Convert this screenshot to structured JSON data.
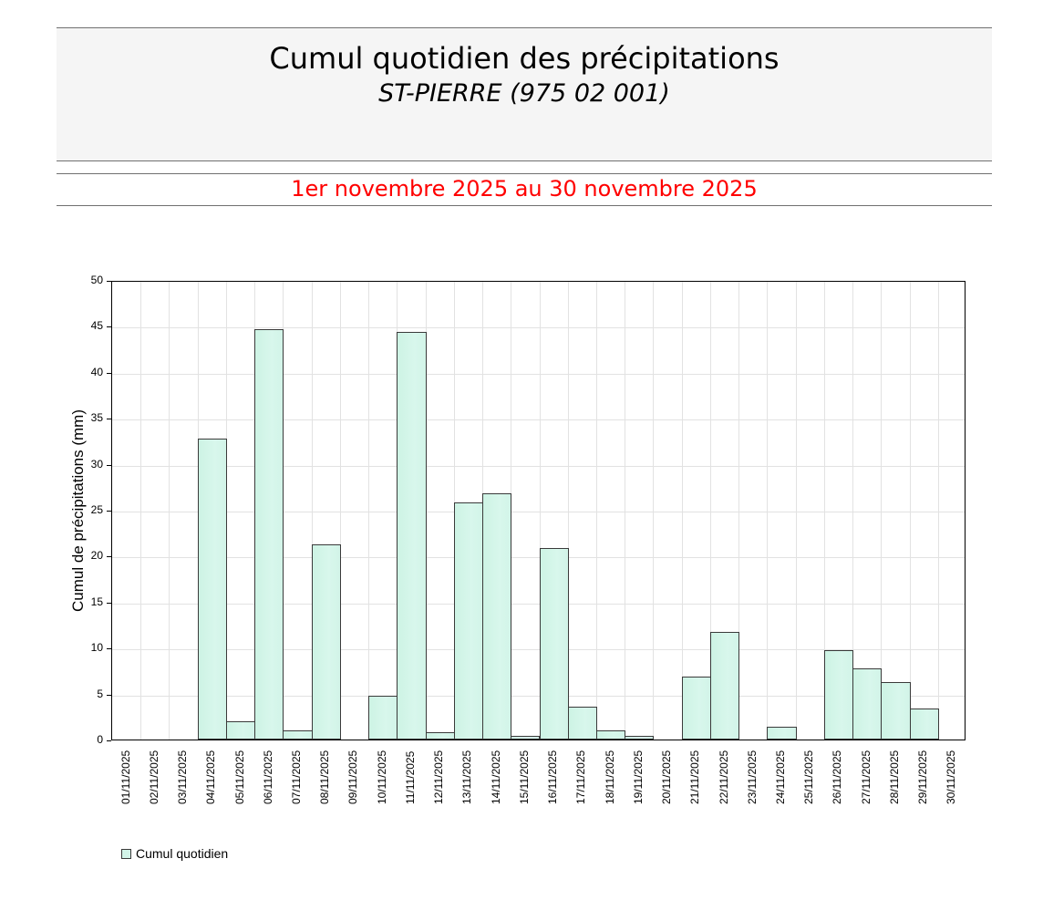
{
  "header": {
    "title": "Cumul quotidien des précipitations",
    "station": "ST-PIERRE (975 02 001)",
    "period": "1er novembre 2025 au 30 novembre 2025"
  },
  "colors": {
    "period_text": "#ff0000",
    "bar_fill": "#d2f4e8",
    "bar_border": "#3a3a3a",
    "grid": "#e2e2e2"
  },
  "legend": {
    "label": "Cumul quotidien"
  },
  "chart_data": {
    "type": "bar",
    "title": "Cumul quotidien des précipitations",
    "subtitle": "ST-PIERRE (975 02 001)",
    "xlabel": "",
    "ylabel": "Cumul de précipitations (mm)",
    "ylim": [
      0,
      50
    ],
    "yticks": [
      0,
      5,
      10,
      15,
      20,
      25,
      30,
      35,
      40,
      45,
      50
    ],
    "grid": true,
    "legend_position": "bottom-left",
    "categories": [
      "01/11/2025",
      "02/11/2025",
      "03/11/2025",
      "04/11/2025",
      "05/11/2025",
      "06/11/2025",
      "07/11/2025",
      "08/11/2025",
      "09/11/2025",
      "10/11/2025",
      "11/11/2025",
      "12/11/2025",
      "13/11/2025",
      "14/11/2025",
      "15/11/2025",
      "16/11/2025",
      "17/11/2025",
      "18/11/2025",
      "19/11/2025",
      "20/11/2025",
      "21/11/2025",
      "22/11/2025",
      "23/11/2025",
      "24/11/2025",
      "25/11/2025",
      "26/11/2025",
      "27/11/2025",
      "28/11/2025",
      "29/11/2025",
      "30/11/2025"
    ],
    "series": [
      {
        "name": "Cumul quotidien",
        "values": [
          0,
          0,
          0,
          32.7,
          2.0,
          44.6,
          1.0,
          21.2,
          0,
          4.8,
          44.3,
          0.8,
          25.8,
          26.8,
          0.4,
          20.8,
          3.6,
          1.0,
          0.4,
          0,
          6.8,
          11.7,
          0,
          1.4,
          0,
          9.7,
          7.7,
          6.3,
          3.4,
          0
        ]
      }
    ]
  }
}
